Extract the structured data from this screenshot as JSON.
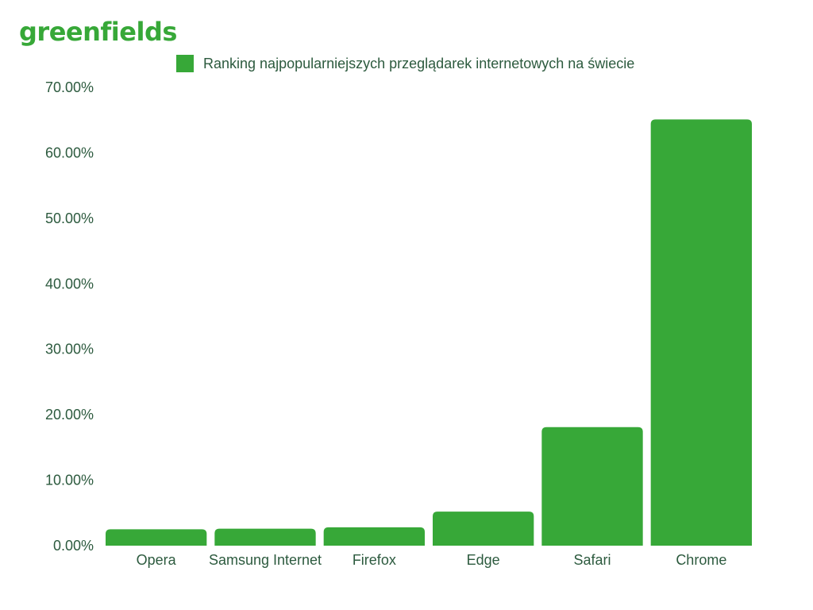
{
  "brand": {
    "name": "greenfields"
  },
  "colors": {
    "bar": "#37a838",
    "text": "#2c5a3e",
    "logo": "#37a838",
    "background": "#ffffff"
  },
  "chart_data": {
    "type": "bar",
    "categories": [
      "Opera",
      "Samsung Internet",
      "Firefox",
      "Edge",
      "Safari",
      "Chrome"
    ],
    "series": [
      {
        "name": "Ranking najpopularniejszych przeglądarek internetowych na świecie",
        "values": [
          2.5,
          2.6,
          2.8,
          5.2,
          18.1,
          65.1
        ]
      }
    ],
    "yticks": [
      "0.00%",
      "10.00%",
      "20.00%",
      "30.00%",
      "40.00%",
      "50.00%",
      "60.00%",
      "70.00%"
    ],
    "ylim": [
      0,
      70
    ],
    "xlabel": "",
    "ylabel": "",
    "grid": false,
    "legend_position": "top"
  }
}
